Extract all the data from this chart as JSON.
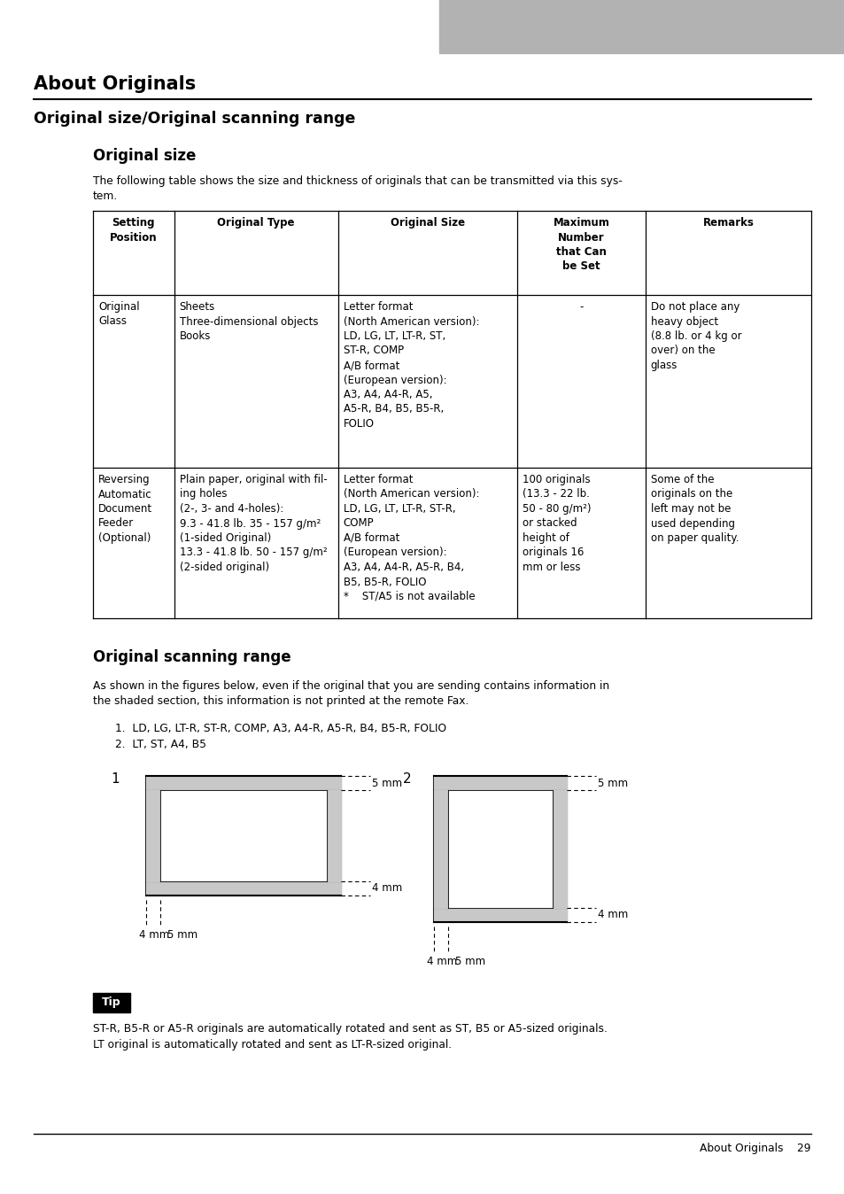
{
  "page_bg": "#ffffff",
  "gray_header_color": "#b2b2b2",
  "title_about": "About Originals",
  "title_section": "Original size/Original scanning range",
  "subtitle_size": "Original size",
  "para_size": "The following table shows the size and thickness of originals that can be transmitted via this sys-\ntem.",
  "table_headers": [
    "Setting\nPosition",
    "Original Type",
    "Original Size",
    "Maximum\nNumber\nthat Can\nbe Set",
    "Remarks"
  ],
  "row1_col1": "Original\nGlass",
  "row1_col2": "Sheets\nThree-dimensional objects\nBooks",
  "row1_col3": "Letter format\n(North American version):\nLD, LG, LT, LT-R, ST,\nST-R, COMP\nA/B format\n(European version):\nA3, A4, A4-R, A5,\nA5-R, B4, B5, B5-R,\nFOLIO",
  "row1_col4": "-",
  "row1_col5": "Do not place any\nheavy object\n(8.8 lb. or 4 kg or\nover) on the\nglass",
  "row2_col1": "Reversing\nAutomatic\nDocument\nFeeder\n(Optional)",
  "row2_col2": "Plain paper, original with fil-\ning holes\n(2-, 3- and 4-holes):\n9.3 - 41.8 lb. 35 - 157 g/m²\n(1-sided Original)\n13.3 - 41.8 lb. 50 - 157 g/m²\n(2-sided original)",
  "row2_col3": "Letter format\n(North American version):\nLD, LG, LT, LT-R, ST-R,\nCOMP\nA/B format\n(European version):\nA3, A4, A4-R, A5-R, B4,\nB5, B5-R, FOLIO\n*    ST/A5 is not available",
  "row2_col4": "100 originals\n(13.3 - 22 lb.\n50 - 80 g/m²)\nor stacked\nheight of\noriginals 16\nmm or less",
  "row2_col5": "Some of the\noriginals on the\nleft may not be\nused depending\non paper quality.",
  "subtitle_scan": "Original scanning range",
  "para_scan": "As shown in the figures below, even if the original that you are sending contains information in\nthe shaded section, this information is not printed at the remote Fax.",
  "list1": "1.  LD, LG, LT-R, ST-R, COMP, A3, A4-R, A5-R, B4, B5-R, FOLIO",
  "list2": "2.  LT, ST, A4, B5",
  "tip_label": "Tip",
  "tip_text": "ST-R, B5-R or A5-R originals are automatically rotated and sent as ST, B5 or A5-sized originals.\nLT original is automatically rotated and sent as LT-R-sized original.",
  "footer_text": "About Originals    29"
}
